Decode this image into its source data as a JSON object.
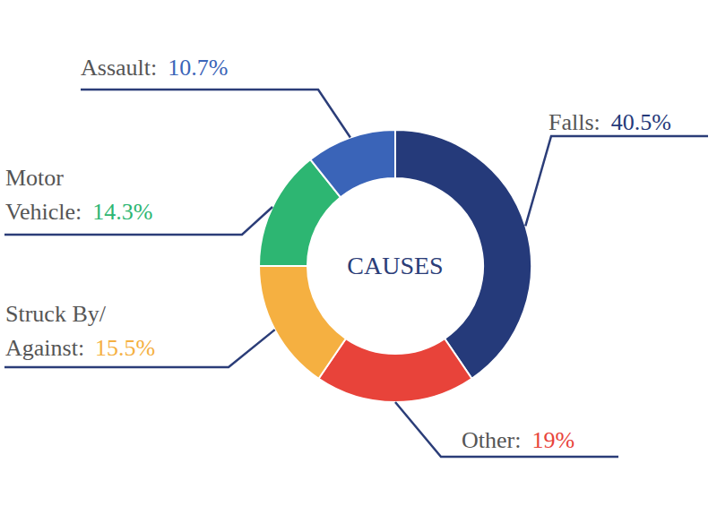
{
  "chart_data": {
    "type": "pie",
    "title": "CAUSES",
    "categories": [
      "Falls:",
      "Other:",
      "Struck By/\nAgainst:",
      "Motor\nVehicle:",
      "Assault:"
    ],
    "values": [
      40.5,
      19,
      15.5,
      14.3,
      10.7
    ],
    "value_labels": [
      "40.5%",
      "19%",
      "15.5%",
      "14.3%",
      "10.7%"
    ],
    "colors": [
      "#253a7a",
      "#e8433a",
      "#f5b041",
      "#2db672",
      "#3a64b8"
    ],
    "data_labels": true
  }
}
